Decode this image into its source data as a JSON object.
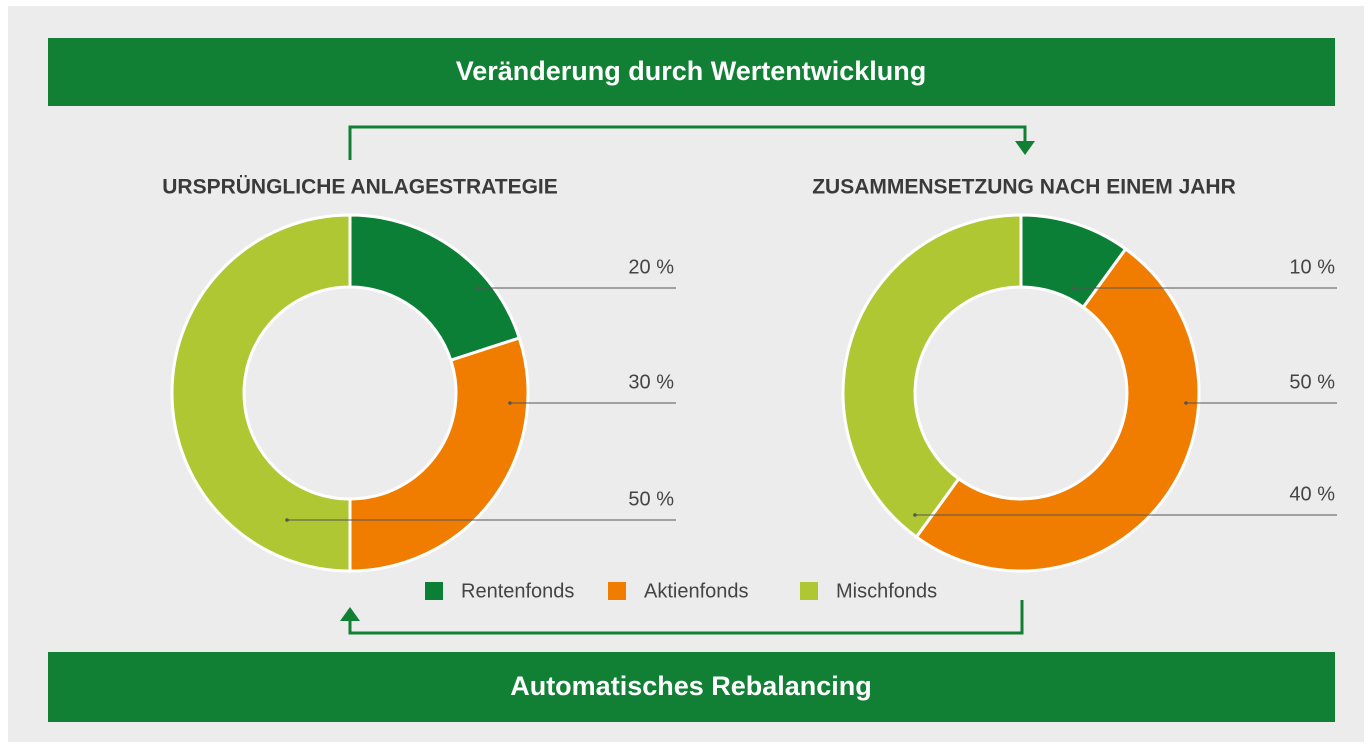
{
  "banners": {
    "top": "Veränderung durch Wertentwicklung",
    "bottom": "Automatisches Rebalancing"
  },
  "chart_data": [
    {
      "type": "pie",
      "donut": true,
      "title": "URSPRÜNGLICHE ANLAGESTRATEGIE",
      "categories": [
        "Rentenfonds",
        "Aktienfonds",
        "Mischfonds"
      ],
      "values": [
        20,
        30,
        50
      ],
      "value_labels": [
        "20 %",
        "30 %",
        "50 %"
      ],
      "colors": [
        "#0a7f35",
        "#f07d00",
        "#afc733"
      ]
    },
    {
      "type": "pie",
      "donut": true,
      "title": "ZUSAMMENSETZUNG NACH EINEM JAHR",
      "categories": [
        "Rentenfonds",
        "Aktienfonds",
        "Mischfonds"
      ],
      "values": [
        10,
        50,
        40
      ],
      "value_labels": [
        "10 %",
        "50 %",
        "40 %"
      ],
      "colors": [
        "#0a7f35",
        "#f07d00",
        "#afc733"
      ]
    }
  ]
}
